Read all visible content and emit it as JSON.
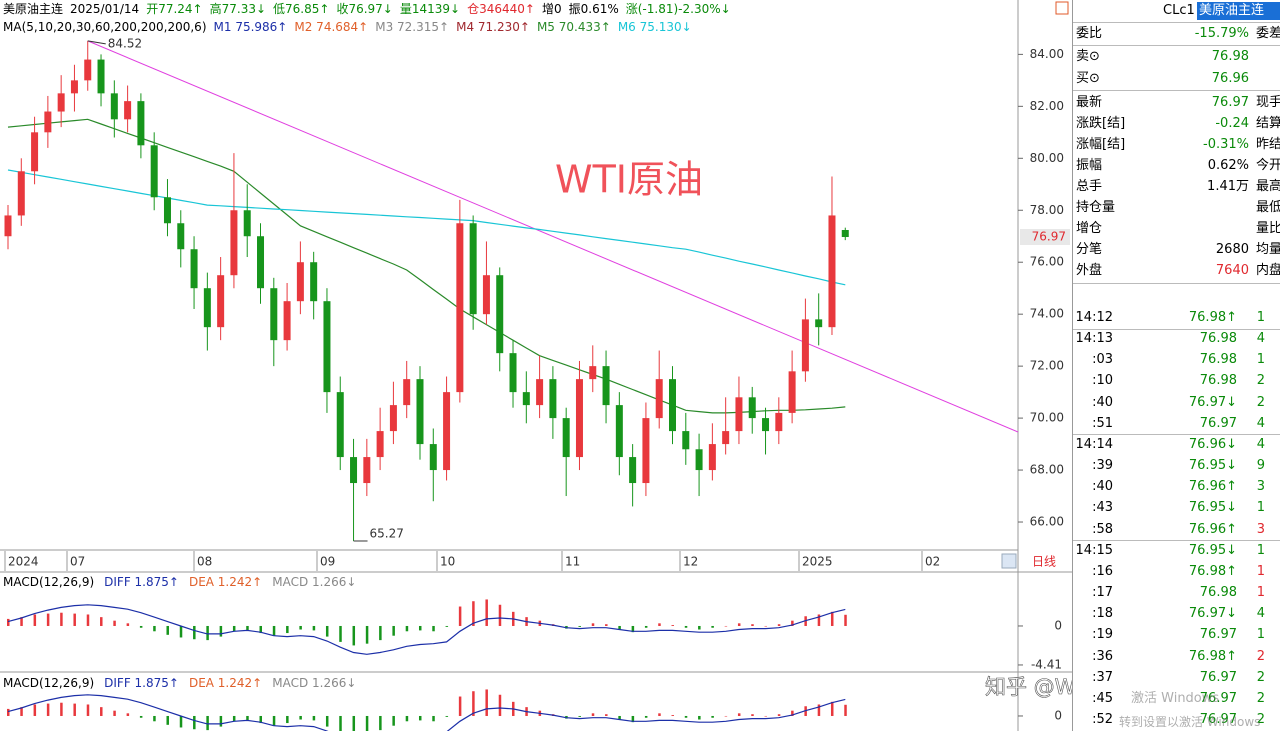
{
  "header": {
    "row1": [
      {
        "text": "美原油主连",
        "color": "#000"
      },
      {
        "text": "2025/01/14",
        "color": "#000"
      },
      {
        "text": "开77.24↑",
        "color": "#0a8a0a"
      },
      {
        "text": "高77.33↓",
        "color": "#0a8a0a"
      },
      {
        "text": "低76.85↑",
        "color": "#0a8a0a"
      },
      {
        "text": "收76.97↓",
        "color": "#0a8a0a"
      },
      {
        "text": "量14139↓",
        "color": "#0a8a0a"
      },
      {
        "text": "仓346440↑",
        "color": "#e0282e"
      },
      {
        "text": "增0",
        "color": "#000"
      },
      {
        "text": "振0.61%",
        "color": "#000"
      },
      {
        "text": "涨(-1.81)-2.30%↓",
        "color": "#0a8a0a"
      }
    ],
    "row2": [
      {
        "text": "MA(5,10,20,30,60,200,200,200,6)",
        "color": "#000"
      },
      {
        "text": "M1 75.986↑",
        "color": "#1c2fa8"
      },
      {
        "text": "M2 74.684↑",
        "color": "#e0602a"
      },
      {
        "text": "M3 72.315↑",
        "color": "#888"
      },
      {
        "text": "M4 71.230↑",
        "color": "#a0282e"
      },
      {
        "text": "M5 70.433↑",
        "color": "#2a8a2a"
      },
      {
        "text": "M6 75.130↓",
        "color": "#19c5d6"
      }
    ]
  },
  "price_chart": {
    "type": "candlestick",
    "up_color": "#e8383d",
    "down_color": "#17951c",
    "candles": [
      [
        77.0,
        78.2,
        76.5,
        77.8
      ],
      [
        77.8,
        80.0,
        77.4,
        79.5
      ],
      [
        79.5,
        81.6,
        79.0,
        81.0
      ],
      [
        81.0,
        82.4,
        80.4,
        81.8
      ],
      [
        81.8,
        83.2,
        81.2,
        82.5
      ],
      [
        82.5,
        83.6,
        81.8,
        83.0
      ],
      [
        83.0,
        84.52,
        82.6,
        83.8
      ],
      [
        83.8,
        84.0,
        82.0,
        82.5
      ],
      [
        82.5,
        83.0,
        80.8,
        81.5
      ],
      [
        81.5,
        82.8,
        81.0,
        82.2
      ],
      [
        82.2,
        82.5,
        80.0,
        80.5
      ],
      [
        80.5,
        81.0,
        78.0,
        78.5
      ],
      [
        78.5,
        79.2,
        77.0,
        77.5
      ],
      [
        77.5,
        78.0,
        75.8,
        76.5
      ],
      [
        76.5,
        77.0,
        74.2,
        75.0
      ],
      [
        75.0,
        75.6,
        72.6,
        73.5
      ],
      [
        73.5,
        76.2,
        73.0,
        75.5
      ],
      [
        75.5,
        80.2,
        75.0,
        78.0
      ],
      [
        78.0,
        79.0,
        76.2,
        77.0
      ],
      [
        77.0,
        77.5,
        74.4,
        75.0
      ],
      [
        75.0,
        75.4,
        72.0,
        73.0
      ],
      [
        73.0,
        75.2,
        72.6,
        74.5
      ],
      [
        74.5,
        76.8,
        74.0,
        76.0
      ],
      [
        76.0,
        76.4,
        73.8,
        74.5
      ],
      [
        74.5,
        75.0,
        70.2,
        71.0
      ],
      [
        71.0,
        71.6,
        68.0,
        68.5
      ],
      [
        68.5,
        69.2,
        65.27,
        67.5
      ],
      [
        67.5,
        69.2,
        67.0,
        68.5
      ],
      [
        68.5,
        70.4,
        68.0,
        69.5
      ],
      [
        69.5,
        71.4,
        69.0,
        70.5
      ],
      [
        70.5,
        72.2,
        70.0,
        71.5
      ],
      [
        71.5,
        72.0,
        68.4,
        69.0
      ],
      [
        69.0,
        69.6,
        66.8,
        68.0
      ],
      [
        68.0,
        71.6,
        67.6,
        71.0
      ],
      [
        71.0,
        78.4,
        70.6,
        77.5
      ],
      [
        77.5,
        77.8,
        73.4,
        74.0
      ],
      [
        74.0,
        76.8,
        73.6,
        75.5
      ],
      [
        75.5,
        75.8,
        71.8,
        72.5
      ],
      [
        72.5,
        73.0,
        70.4,
        71.0
      ],
      [
        71.0,
        71.8,
        69.8,
        70.5
      ],
      [
        70.5,
        72.4,
        70.0,
        71.5
      ],
      [
        71.5,
        72.0,
        69.2,
        70.0
      ],
      [
        70.0,
        70.4,
        67.0,
        68.5
      ],
      [
        68.5,
        72.2,
        68.0,
        71.5
      ],
      [
        71.5,
        72.8,
        71.0,
        72.0
      ],
      [
        72.0,
        72.6,
        69.8,
        70.5
      ],
      [
        70.5,
        71.0,
        67.8,
        68.5
      ],
      [
        68.5,
        69.0,
        66.6,
        67.5
      ],
      [
        67.5,
        70.6,
        67.0,
        70.0
      ],
      [
        70.0,
        72.6,
        69.6,
        71.5
      ],
      [
        71.5,
        72.0,
        69.0,
        69.5
      ],
      [
        69.5,
        70.2,
        68.2,
        68.8
      ],
      [
        68.8,
        69.4,
        67.0,
        68.0
      ],
      [
        68.0,
        69.8,
        67.6,
        69.0
      ],
      [
        69.0,
        70.8,
        68.6,
        69.5
      ],
      [
        69.5,
        71.6,
        69.0,
        70.8
      ],
      [
        70.8,
        71.2,
        69.4,
        70.0
      ],
      [
        70.0,
        70.4,
        68.6,
        69.5
      ],
      [
        69.5,
        70.8,
        69.0,
        70.2
      ],
      [
        70.2,
        72.6,
        69.8,
        71.8
      ],
      [
        71.8,
        74.6,
        71.4,
        73.8
      ],
      [
        73.8,
        74.8,
        72.8,
        73.5
      ],
      [
        73.5,
        79.3,
        73.2,
        77.8
      ],
      [
        77.24,
        77.33,
        76.85,
        76.97
      ]
    ],
    "ma_lines": [
      {
        "name": "M5",
        "color": "#2a8a2a",
        "values": [
          81.2,
          81.25,
          81.3,
          81.35,
          81.4,
          81.45,
          81.5,
          81.32,
          81.14,
          80.96,
          80.78,
          80.6,
          80.42,
          80.24,
          80.06,
          79.88,
          79.7,
          79.5,
          79.08,
          78.66,
          78.24,
          77.82,
          77.4,
          77.19,
          76.98,
          76.77,
          76.56,
          76.35,
          76.14,
          75.93,
          75.7,
          75.33,
          74.95,
          74.58,
          74.2,
          73.9,
          73.6,
          73.3,
          73.0,
          72.7,
          72.4,
          72.22,
          72.04,
          71.86,
          71.68,
          71.5,
          71.3,
          71.1,
          70.9,
          70.7,
          70.5,
          70.3,
          70.25,
          70.2,
          70.2,
          70.22,
          70.25,
          70.28,
          70.3,
          70.3,
          70.32,
          70.35,
          70.38,
          70.43
        ]
      },
      {
        "name": "M6",
        "color": "#19c5d6",
        "values": [
          79.55,
          79.46,
          79.37,
          79.28,
          79.19,
          79.1,
          79.01,
          78.92,
          78.83,
          78.74,
          78.65,
          78.56,
          78.47,
          78.38,
          78.29,
          78.2,
          78.17,
          78.14,
          78.11,
          78.08,
          78.05,
          78.02,
          77.99,
          77.96,
          77.93,
          77.9,
          77.87,
          77.84,
          77.81,
          77.78,
          77.75,
          77.72,
          77.69,
          77.66,
          77.63,
          77.6,
          77.53,
          77.46,
          77.39,
          77.32,
          77.26,
          77.19,
          77.12,
          77.05,
          76.98,
          76.91,
          76.84,
          76.77,
          76.7,
          76.63,
          76.56,
          76.5,
          76.39,
          76.27,
          76.16,
          76.04,
          75.93,
          75.82,
          75.7,
          75.59,
          75.47,
          75.36,
          75.24,
          75.13
        ]
      }
    ],
    "ylim": [
      65,
      85.4
    ],
    "yticks": [
      {
        "value": 66,
        "label": "66.00"
      },
      {
        "value": 68,
        "label": "68.00"
      },
      {
        "value": 70,
        "label": "70.00"
      },
      {
        "value": 72,
        "label": "72.00"
      },
      {
        "value": 74,
        "label": "74.00"
      },
      {
        "value": 76,
        "label": "76.00"
      },
      {
        "value": 78,
        "label": "78.00"
      },
      {
        "value": 80,
        "label": "80.00"
      },
      {
        "value": 82,
        "label": "82.00"
      },
      {
        "value": 84,
        "label": "84.00"
      }
    ],
    "title": "WTI原油",
    "time_axis": [
      "2024",
      "07",
      "08",
      "09",
      "10",
      "11",
      "12",
      "2025",
      "02"
    ],
    "period": "日线"
  },
  "macd": {
    "type": "bar",
    "label": [
      {
        "text": "MACD(12,26,9)",
        "color": "#000"
      },
      {
        "text": "DIFF 1.875↑",
        "color": "#1c2fa8"
      },
      {
        "text": "DEA 1.242↑",
        "color": "#e0602a"
      },
      {
        "text": "MACD 1.266↓",
        "color": "#888"
      }
    ],
    "up_color": "#e8383d",
    "down_color": "#17951c",
    "diff_color": "#1c2fa8",
    "hist": [
      0.8,
      1.0,
      1.3,
      1.4,
      1.5,
      1.4,
      1.3,
      1.0,
      0.6,
      0.3,
      -0.2,
      -0.6,
      -1.0,
      -1.3,
      -1.5,
      -1.6,
      -1.2,
      -0.6,
      -0.5,
      -0.8,
      -1.1,
      -0.8,
      -0.4,
      -0.5,
      -1.2,
      -1.8,
      -2.2,
      -2.0,
      -1.6,
      -1.1,
      -0.6,
      -0.5,
      -0.6,
      -0.1,
      2.2,
      2.8,
      3.0,
      2.4,
      1.6,
      1.0,
      0.6,
      0.2,
      -0.3,
      -0.1,
      0.3,
      0.2,
      -0.4,
      -0.7,
      -0.2,
      0.3,
      0.1,
      -0.2,
      -0.4,
      -0.2,
      0.0,
      0.3,
      0.2,
      0.0,
      0.2,
      0.6,
      1.1,
      1.3,
      1.6,
      1.266
    ],
    "diff": [
      0.5,
      0.9,
      1.4,
      1.8,
      2.1,
      2.3,
      2.4,
      2.3,
      2.1,
      1.9,
      1.5,
      1.0,
      0.5,
      0.0,
      -0.5,
      -0.9,
      -0.9,
      -0.6,
      -0.5,
      -0.7,
      -1.1,
      -1.2,
      -1.1,
      -1.2,
      -1.7,
      -2.4,
      -3.0,
      -3.2,
      -3.0,
      -2.7,
      -2.3,
      -2.1,
      -2.0,
      -1.8,
      -0.6,
      0.3,
      0.8,
      0.9,
      0.8,
      0.5,
      0.3,
      0.1,
      -0.2,
      -0.3,
      -0.2,
      -0.2,
      -0.4,
      -0.6,
      -0.6,
      -0.5,
      -0.5,
      -0.6,
      -0.7,
      -0.7,
      -0.6,
      -0.4,
      -0.3,
      -0.3,
      -0.2,
      0.1,
      0.6,
      1.0,
      1.5,
      1.875
    ],
    "ylim": [
      -4.98,
      4.07
    ],
    "yticks": [
      0,
      -4.41
    ]
  },
  "quote": {
    "code": "CLc1",
    "name": "美原油主连",
    "rows": [
      {
        "label": "委比",
        "value": "-15.79%",
        "right": "委差",
        "color": "#0a8a0a"
      },
      {
        "label": "卖⊙",
        "value": "76.98",
        "color": "#0a8a0a"
      },
      {
        "label": "买⊙",
        "value": "76.96",
        "color": "#0a8a0a"
      },
      {
        "label": "最新",
        "value": "76.97",
        "right": "现手",
        "color": "#0a8a0a"
      },
      {
        "label": "涨跌[结]",
        "value": "-0.24",
        "right": "结算价",
        "color": "#0a8a0a"
      },
      {
        "label": "涨幅[结]",
        "value": "-0.31%",
        "right": "昨结算",
        "color": "#0a8a0a"
      },
      {
        "label": "振幅",
        "value": "0.62%",
        "right": "今开",
        "color": "#000"
      },
      {
        "label": "总手",
        "value": "1.41万",
        "right": "最高",
        "color": "#000"
      },
      {
        "label": "持仓量",
        "right": "最低"
      },
      {
        "label": "增仓",
        "right": "量比"
      },
      {
        "label": "分笔",
        "value": "2680",
        "right": "均量",
        "color": "#000"
      },
      {
        "label": "外盘",
        "value": "7640",
        "right": "内盘",
        "color": "#e0282e"
      }
    ]
  },
  "ticks": [
    {
      "time": "14:12",
      "price": "76.98↑",
      "volume": "1",
      "color": "#0a8a0a"
    },
    {
      "time": "14:13",
      "price": "76.98",
      "volume": "4",
      "color": "#0a8a0a"
    },
    {
      "time": ":03",
      "price": "76.98",
      "volume": "1",
      "color": "#0a8a0a"
    },
    {
      "time": ":10",
      "price": "76.98",
      "volume": "2",
      "color": "#0a8a0a"
    },
    {
      "time": ":40",
      "price": "76.97↓",
      "volume": "2",
      "color": "#0a8a0a"
    },
    {
      "time": ":51",
      "price": "76.97",
      "volume": "4",
      "color": "#0a8a0a"
    },
    {
      "time": "14:14",
      "price": "76.96↓",
      "volume": "4",
      "color": "#0a8a0a"
    },
    {
      "time": ":39",
      "price": "76.95↓",
      "volume": "9",
      "color": "#0a8a0a"
    },
    {
      "time": ":40",
      "price": "76.96↑",
      "volume": "3",
      "color": "#0a8a0a"
    },
    {
      "time": ":43",
      "price": "76.95↓",
      "volume": "1",
      "color": "#0a8a0a"
    },
    {
      "time": ":58",
      "price": "76.96↑",
      "volume": "3",
      "color": "#e0282e"
    },
    {
      "time": "14:15",
      "price": "76.95↓",
      "volume": "1",
      "color": "#0a8a0a"
    },
    {
      "time": ":16",
      "price": "76.98↑",
      "volume": "1",
      "color": "#e0282e"
    },
    {
      "time": ":17",
      "price": "76.98",
      "volume": "1",
      "color": "#e0282e"
    },
    {
      "time": ":18",
      "price": "76.97↓",
      "volume": "4",
      "color": "#0a8a0a"
    },
    {
      "time": ":19",
      "price": "76.97",
      "volume": "1",
      "color": "#0a8a0a"
    },
    {
      "time": ":36",
      "price": "76.98↑",
      "volume": "2",
      "color": "#e0282e"
    },
    {
      "time": ":37",
      "price": "76.97",
      "volume": "2",
      "color": "#0a8a0a"
    },
    {
      "time": ":45",
      "price": "76.97",
      "volume": "2",
      "color": "#0a8a0a"
    },
    {
      "time": ":52",
      "price": "76.97",
      "volume": "2",
      "color": "#0a8a0a"
    }
  ],
  "watermark": {
    "site": "知乎 @WeTrade众汇 官方",
    "os1": "激活 Windows",
    "os2": "转到设置以激活 Windows"
  }
}
